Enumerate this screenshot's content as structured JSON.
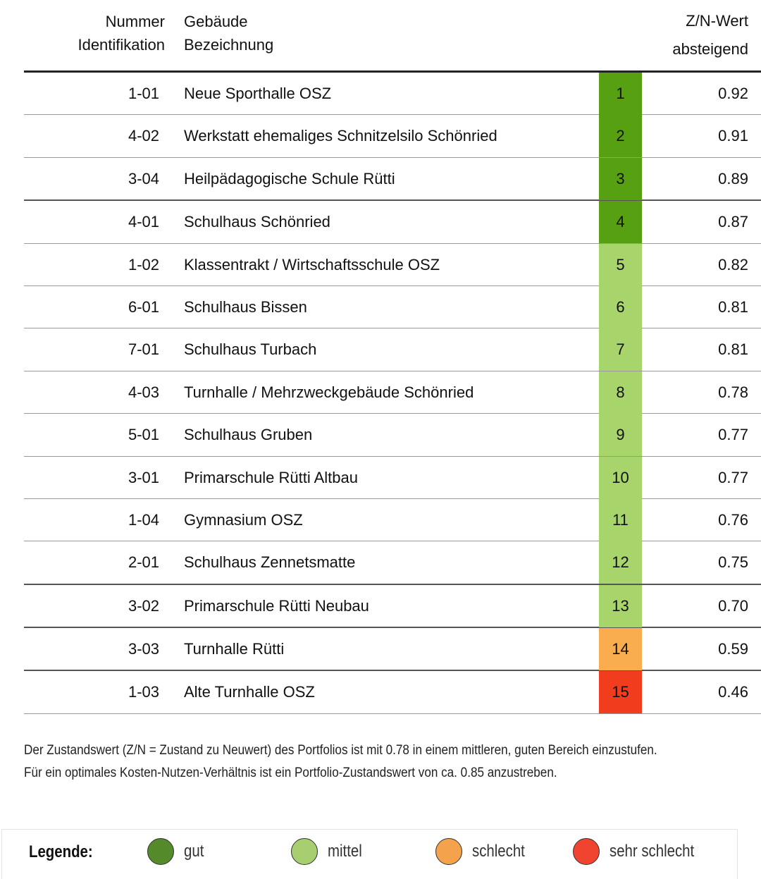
{
  "header": {
    "col1": [
      "Nummer",
      "Identifikation"
    ],
    "col2": [
      "Gebäude",
      "Bezeichnung"
    ],
    "col4": [
      "Z/N-Wert",
      "absteigend"
    ]
  },
  "colors": {
    "gut": "#56a012",
    "mittel": "#a8d46c",
    "schlecht": "#f9ad4f",
    "sehr_schlecht": "#f23c1e"
  },
  "rows": [
    {
      "num": "1-01",
      "name": "Neue Sporthalle OSZ",
      "rank": "1",
      "value": "0.92",
      "cat": "gut"
    },
    {
      "num": "4-02",
      "name": "Werkstatt ehemaliges Schnitzelsilo Schönried",
      "rank": "2",
      "value": "0.91",
      "cat": "gut"
    },
    {
      "num": "3-04",
      "name": "Heilpädagogische Schule Rütti",
      "rank": "3",
      "value": "0.89",
      "cat": "gut"
    },
    {
      "num": "4-01",
      "name": "Schulhaus Schönried",
      "rank": "4",
      "value": "0.87",
      "cat": "gut"
    },
    {
      "num": "1-02",
      "name": "Klassentrakt / Wirtschaftsschule OSZ",
      "rank": "5",
      "value": "0.82",
      "cat": "mittel"
    },
    {
      "num": "6-01",
      "name": "Schulhaus Bissen",
      "rank": "6",
      "value": "0.81",
      "cat": "mittel"
    },
    {
      "num": "7-01",
      "name": "Schulhaus Turbach",
      "rank": "7",
      "value": "0.81",
      "cat": "mittel"
    },
    {
      "num": "4-03",
      "name": "Turnhalle / Mehrzweckgebäude Schönried",
      "rank": "8",
      "value": "0.78",
      "cat": "mittel"
    },
    {
      "num": "5-01",
      "name": "Schulhaus Gruben",
      "rank": "9",
      "value": "0.77",
      "cat": "mittel"
    },
    {
      "num": "3-01",
      "name": "Primarschule Rütti Altbau",
      "rank": "10",
      "value": "0.77",
      "cat": "mittel"
    },
    {
      "num": "1-04",
      "name": "Gymnasium OSZ",
      "rank": "11",
      "value": "0.76",
      "cat": "mittel"
    },
    {
      "num": "2-01",
      "name": "Schulhaus Zennetsmatte",
      "rank": "12",
      "value": "0.75",
      "cat": "mittel"
    },
    {
      "num": "3-02",
      "name": "Primarschule Rütti Neubau",
      "rank": "13",
      "value": "0.70",
      "cat": "mittel"
    },
    {
      "num": "3-03",
      "name": "Turnhalle Rütti",
      "rank": "14",
      "value": "0.59",
      "cat": "schlecht"
    },
    {
      "num": "1-03",
      "name": "Alte Turnhalle OSZ",
      "rank": "15",
      "value": "0.46",
      "cat": "sehr_schlecht"
    }
  ],
  "note": [
    "Der Zustandswert (Z/N = Zustand zu Neuwert) des Portfolios ist mit 0.78 in einem mittleren, guten Bereich einzustufen.",
    "Für ein optimales Kosten-Nutzen-Verhältnis ist ein Portfolio-Zustandswert von ca. 0.85 anzustreben."
  ],
  "legend": {
    "title": "Legende:",
    "items": [
      {
        "label": "gut",
        "color": "#548a2a"
      },
      {
        "label": "mittel",
        "color": "#a8cf6f"
      },
      {
        "label": "schlecht",
        "color": "#f4a24c"
      },
      {
        "label": "sehr schlecht",
        "color": "#f04430"
      }
    ]
  }
}
